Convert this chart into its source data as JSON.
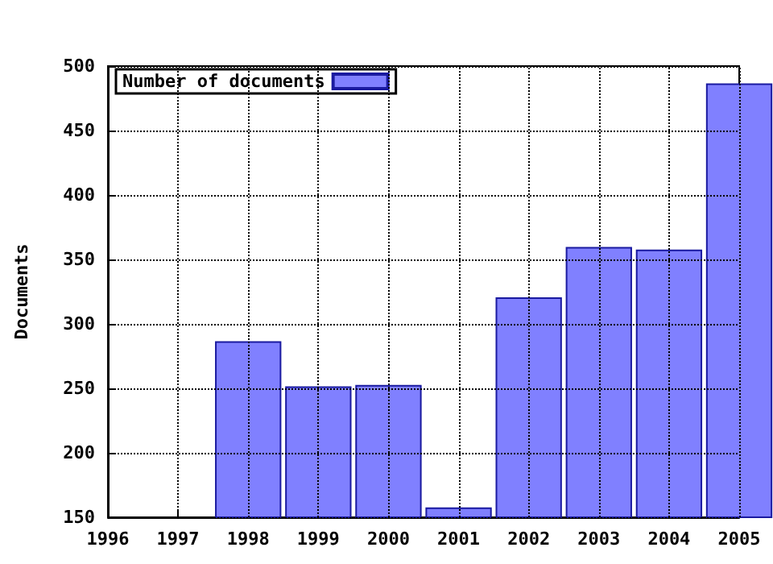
{
  "chart_data": {
    "type": "bar",
    "ylabel": "Documents",
    "x": [
      1998,
      1999,
      2000,
      2001,
      2002,
      2003,
      2004,
      2005
    ],
    "series": [
      {
        "name": "Number of documents",
        "color": "#8080ff",
        "values": [
          286,
          251,
          252,
          157,
          320,
          359,
          357,
          486
        ]
      }
    ],
    "xlim": [
      1996,
      2005
    ],
    "xticks": [
      1996,
      1997,
      1998,
      1999,
      2000,
      2001,
      2002,
      2003,
      2004,
      2005
    ],
    "ylim": [
      150,
      500
    ],
    "yticks": [
      150,
      200,
      250,
      300,
      350,
      400,
      450,
      500
    ],
    "grid": true,
    "line_style": "dotted",
    "legend": "top left"
  }
}
